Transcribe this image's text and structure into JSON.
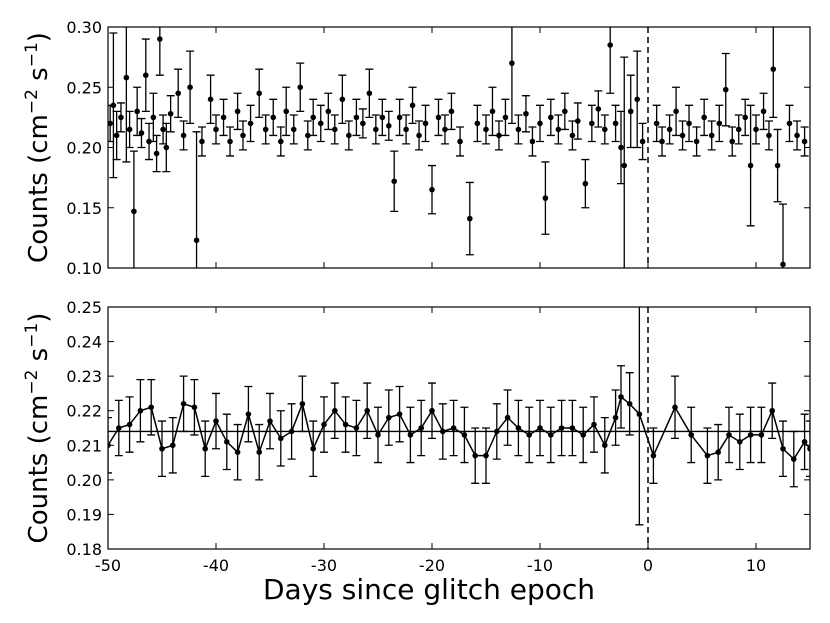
{
  "chart_data": [
    {
      "type": "errorbar",
      "ylabel": [
        "Counts (cm",
        "−2",
        " s",
        "−1",
        ")"
      ],
      "color": "#000000",
      "xlim": [
        -50,
        15
      ],
      "xticks": [
        -50,
        -40,
        -30,
        -20,
        -10,
        0,
        10
      ],
      "ylim": [
        0.1,
        0.3
      ],
      "yticks": [
        {
          "value": 0.1,
          "label": "0.10"
        },
        0.15,
        {
          "value": 0.2,
          "label": "0.20"
        },
        0.25,
        {
          "value": 0.3,
          "label": "0.30"
        }
      ],
      "vline": 0,
      "x": [
        -49.8,
        -49.5,
        -49.2,
        -48.8,
        -48.3,
        -48,
        -47.6,
        -47.3,
        -46.9,
        -46.5,
        -46.2,
        -45.8,
        -45.5,
        -45.2,
        -44.9,
        -44.6,
        -44.2,
        -43.5,
        -43,
        -42.4,
        -41.8,
        -41.3,
        -40.5,
        -40,
        -39.3,
        -38.7,
        -38,
        -37.5,
        -36.8,
        -36,
        -35.4,
        -34.7,
        -34,
        -33.5,
        -32.8,
        -32.2,
        -31.5,
        -31,
        -30.3,
        -29.6,
        -29,
        -28.3,
        -27.7,
        -27,
        -26.4,
        -25.8,
        -25.2,
        -24.6,
        -24,
        -23.5,
        -23,
        -22.4,
        -21.8,
        -21.2,
        -20.6,
        -20,
        -19.4,
        -18.8,
        -18.2,
        -17.4,
        -16.5,
        -15.8,
        -15,
        -14.4,
        -13.8,
        -13.2,
        -12.6,
        -12,
        -11.3,
        -10.7,
        -10,
        -9.5,
        -9,
        -8.3,
        -7.7,
        -7,
        -6.5,
        -5.8,
        -5.2,
        -4.6,
        -4,
        -3.5,
        -3,
        -2.5,
        -2.2,
        -1.6,
        -1,
        -0.5,
        0.8,
        1.3,
        2,
        2.6,
        3.2,
        3.8,
        4.5,
        5.2,
        5.9,
        6.6,
        7.2,
        7.8,
        8.4,
        9,
        9.5,
        10,
        10.7,
        11.2,
        11.6,
        12,
        12.5,
        13.1,
        13.8,
        14.5
      ],
      "values": [
        0.22,
        0.235,
        0.21,
        0.225,
        0.258,
        0.215,
        0.147,
        0.23,
        0.212,
        0.26,
        0.205,
        0.225,
        0.195,
        0.29,
        0.215,
        0.2,
        0.228,
        0.245,
        0.21,
        0.25,
        0.123,
        0.205,
        0.24,
        0.215,
        0.225,
        0.205,
        0.23,
        0.21,
        0.22,
        0.245,
        0.215,
        0.225,
        0.205,
        0.23,
        0.215,
        0.25,
        0.21,
        0.225,
        0.22,
        0.23,
        0.215,
        0.24,
        0.21,
        0.225,
        0.22,
        0.245,
        0.215,
        0.225,
        0.218,
        0.172,
        0.225,
        0.215,
        0.235,
        0.21,
        0.22,
        0.165,
        0.225,
        0.215,
        0.23,
        0.205,
        0.141,
        0.22,
        0.215,
        0.23,
        0.21,
        0.225,
        0.27,
        0.215,
        0.228,
        0.205,
        0.22,
        0.158,
        0.225,
        0.215,
        0.23,
        0.21,
        0.222,
        0.17,
        0.22,
        0.232,
        0.215,
        0.285,
        0.22,
        0.2,
        0.185,
        0.23,
        0.24,
        0.205,
        0.22,
        0.205,
        0.215,
        0.23,
        0.21,
        0.22,
        0.205,
        0.225,
        0.21,
        0.22,
        0.248,
        0.205,
        0.215,
        0.225,
        0.185,
        0.215,
        0.23,
        0.21,
        0.265,
        0.185,
        0.103,
        0.22,
        0.21,
        0.205
      ],
      "errors": [
        0.015,
        0.06,
        0.02,
        0.012,
        0.07,
        0.015,
        0.05,
        0.02,
        0.012,
        0.03,
        0.015,
        0.02,
        0.015,
        0.03,
        0.012,
        0.02,
        0.015,
        0.02,
        0.012,
        0.03,
        0.09,
        0.012,
        0.02,
        0.012,
        0.015,
        0.012,
        0.015,
        0.012,
        0.015,
        0.02,
        0.012,
        0.015,
        0.012,
        0.02,
        0.012,
        0.02,
        0.012,
        0.015,
        0.015,
        0.015,
        0.012,
        0.02,
        0.012,
        0.015,
        0.012,
        0.02,
        0.012,
        0.015,
        0.012,
        0.025,
        0.015,
        0.012,
        0.015,
        0.012,
        0.015,
        0.02,
        0.015,
        0.012,
        0.015,
        0.012,
        0.03,
        0.015,
        0.012,
        0.02,
        0.012,
        0.015,
        0.05,
        0.012,
        0.015,
        0.012,
        0.015,
        0.03,
        0.015,
        0.012,
        0.015,
        0.012,
        0.015,
        0.02,
        0.015,
        0.015,
        0.012,
        0.04,
        0.015,
        0.03,
        0.09,
        0.03,
        0.04,
        0.015,
        0.015,
        0.012,
        0.012,
        0.02,
        0.012,
        0.015,
        0.012,
        0.015,
        0.012,
        0.015,
        0.03,
        0.012,
        0.012,
        0.015,
        0.05,
        0.012,
        0.015,
        0.012,
        0.04,
        0.03,
        0.05,
        0.015,
        0.012,
        0.012
      ]
    },
    {
      "type": "line",
      "ylabel": [
        "Counts (cm",
        "−2",
        " s",
        "−1",
        ")"
      ],
      "xlabel": "Days since glitch epoch",
      "color": "#000000",
      "xlim": [
        -50,
        15
      ],
      "xticks": [
        -50,
        -40,
        -30,
        -20,
        -10,
        0,
        10
      ],
      "ylim": [
        0.18,
        0.25
      ],
      "yticks": [
        0.18,
        0.19,
        {
          "value": 0.2,
          "label": "0.20"
        },
        0.21,
        0.22,
        0.23,
        0.24,
        0.25
      ],
      "vline": 0,
      "hline": 0.214,
      "x": [
        -50,
        -49,
        -48,
        -47,
        -46,
        -45,
        -44,
        -43,
        -42,
        -41,
        -40,
        -39,
        -38,
        -37,
        -36,
        -35,
        -34,
        -33,
        -32,
        -31,
        -30,
        -29,
        -28,
        -27,
        -26,
        -25,
        -24,
        -23,
        -22,
        -21,
        -20,
        -19,
        -18,
        -17,
        -16,
        -15,
        -14,
        -13,
        -12,
        -11,
        -10,
        -9,
        -8,
        -7,
        -6,
        -5,
        -4,
        -3,
        -2.5,
        -1.7,
        -0.8,
        0.5,
        2.5,
        4,
        5.5,
        6.5,
        7.5,
        8.5,
        9.5,
        10.5,
        11.5,
        12.5,
        13.5,
        14.5,
        15
      ],
      "values": [
        0.21,
        0.215,
        0.216,
        0.22,
        0.221,
        0.209,
        0.21,
        0.222,
        0.221,
        0.209,
        0.217,
        0.211,
        0.208,
        0.219,
        0.208,
        0.217,
        0.212,
        0.214,
        0.222,
        0.209,
        0.216,
        0.22,
        0.216,
        0.215,
        0.22,
        0.213,
        0.218,
        0.219,
        0.213,
        0.215,
        0.22,
        0.214,
        0.215,
        0.213,
        0.207,
        0.207,
        0.214,
        0.218,
        0.215,
        0.213,
        0.215,
        0.213,
        0.215,
        0.215,
        0.213,
        0.216,
        0.21,
        0.218,
        0.224,
        0.222,
        0.219,
        0.207,
        0.221,
        0.213,
        0.207,
        0.208,
        0.213,
        0.211,
        0.213,
        0.213,
        0.22,
        0.209,
        0.206,
        0.211,
        0.209
      ],
      "errors": [
        0.008,
        0.008,
        0.008,
        0.009,
        0.008,
        0.008,
        0.008,
        0.008,
        0.008,
        0.008,
        0.008,
        0.008,
        0.008,
        0.008,
        0.008,
        0.008,
        0.008,
        0.008,
        0.008,
        0.008,
        0.008,
        0.008,
        0.008,
        0.008,
        0.008,
        0.008,
        0.008,
        0.008,
        0.008,
        0.008,
        0.008,
        0.008,
        0.008,
        0.008,
        0.008,
        0.008,
        0.008,
        0.008,
        0.008,
        0.008,
        0.008,
        0.008,
        0.008,
        0.008,
        0.008,
        0.008,
        0.008,
        0.008,
        0.009,
        0.009,
        0.032,
        0.008,
        0.009,
        0.008,
        0.008,
        0.008,
        0.008,
        0.008,
        0.008,
        0.008,
        0.008,
        0.008,
        0.008,
        0.008,
        0.008
      ]
    }
  ]
}
